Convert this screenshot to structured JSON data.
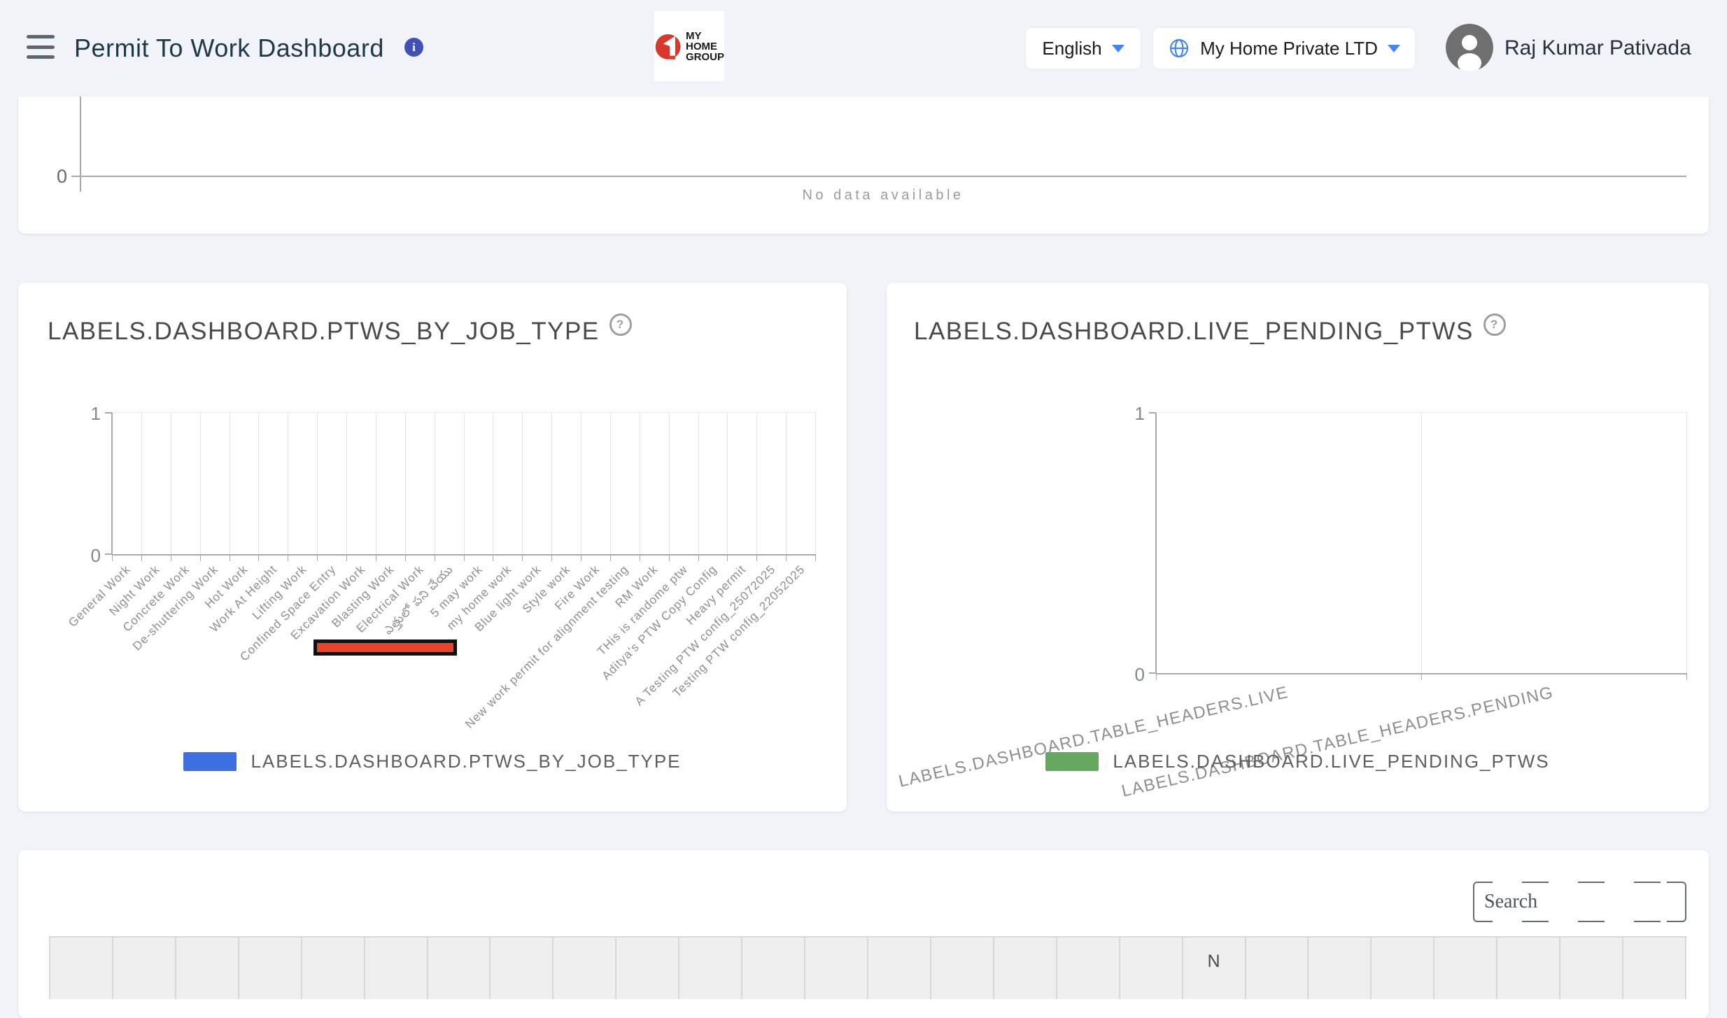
{
  "header": {
    "title": "Permit To Work Dashboard",
    "info_glyph": "i",
    "logo_lines": [
      "MY",
      "HOME",
      "GROUP"
    ],
    "language_selector": {
      "label": "English"
    },
    "company_selector": {
      "label": "My Home Private LTD"
    },
    "user_name": "Raj Kumar Pativada"
  },
  "no_data_chart": {
    "y_tick": "0",
    "message": "No data available"
  },
  "charts": {
    "job_type": {
      "title": "LABELS.DASHBOARD.PTWS_BY_JOB_TYPE",
      "help_glyph": "?",
      "type": "bar",
      "y_range": [
        0,
        1
      ],
      "y_ticks": [
        "1",
        "0"
      ],
      "bars_rendered": false,
      "categories": [
        "General Work",
        "Night Work",
        "Concrete Work",
        "De-shuttering Work",
        "Hot Work",
        "Work At Height",
        "Lifting Work",
        "Confined Space Entry",
        "Excavation Work",
        "Blasting Work",
        "Electrical Work",
        "ఎత్తులో పని చేయు",
        "5 may work",
        "my home work",
        "Blue light work",
        "Style work",
        "Fire Work",
        "New work permit for alignment testing",
        "RM Work",
        "THis is randome ptw",
        "Aditya's PTW Copy Config",
        "Heavy permit",
        "A Testing PTW config_25072025",
        "Testing PTW config_22052025"
      ],
      "legend": {
        "label": "LABELS.DASHBOARD.PTWS_BY_JOB_TYPE",
        "color": "#3D6FE1"
      },
      "highlight_bar": {
        "color": "#E8432B",
        "border_color": "#111111"
      }
    },
    "live_pending": {
      "title": "LABELS.DASHBOARD.LIVE_PENDING_PTWS",
      "help_glyph": "?",
      "type": "bar",
      "y_range": [
        0,
        1
      ],
      "y_ticks": [
        "1",
        "0"
      ],
      "bars_rendered": false,
      "categories": [
        "LABELS.DASHBOARD.TABLE_HEADERS.LIVE",
        "LABELS.DASHBOARD.TABLE_HEADERS.PENDING"
      ],
      "legend": {
        "label": "LABELS.DASHBOARD.LIVE_PENDING_PTWS",
        "color": "#67A860"
      }
    }
  },
  "table_section": {
    "search_placeholder": "Search",
    "column_count": 26,
    "header_labels": [
      "",
      "",
      "",
      "",
      "",
      "",
      "",
      "",
      "",
      "",
      "",
      "",
      "",
      "",
      "",
      "",
      "",
      "",
      "N",
      "",
      "",
      "",
      "",
      "",
      "",
      ""
    ]
  }
}
